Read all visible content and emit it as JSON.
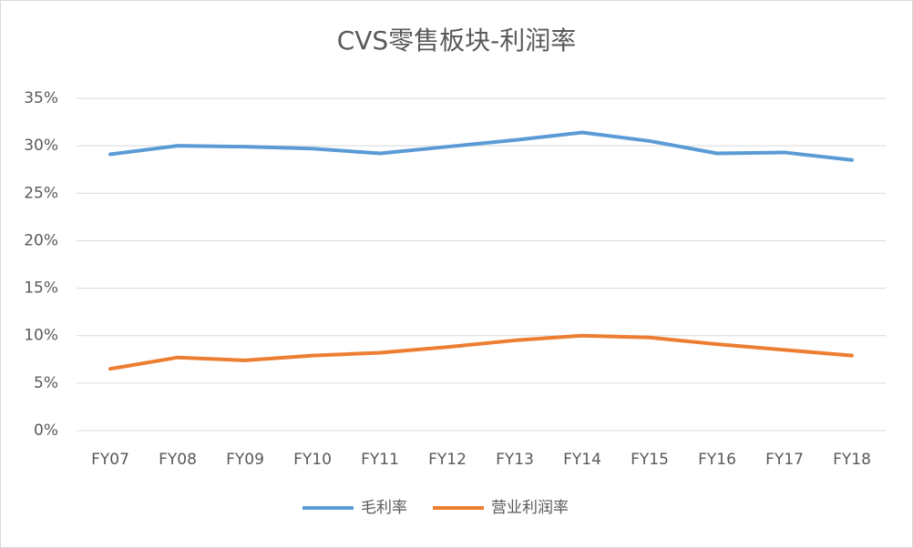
{
  "chart_data": {
    "type": "line",
    "title": "CVS零售板块-利润率",
    "categories": [
      "FY07",
      "FY08",
      "FY09",
      "FY10",
      "FY11",
      "FY12",
      "FY13",
      "FY14",
      "FY15",
      "FY16",
      "FY17",
      "FY18"
    ],
    "series": [
      {
        "name": "毛利率",
        "color": "#5b9bd5",
        "values": [
          29.1,
          30.0,
          29.9,
          29.7,
          29.2,
          29.9,
          30.6,
          31.4,
          30.5,
          29.2,
          29.3,
          28.5
        ]
      },
      {
        "name": "营业利润率",
        "color": "#ed7d31",
        "values": [
          6.5,
          7.7,
          7.4,
          7.9,
          8.2,
          8.8,
          9.5,
          10.0,
          9.8,
          9.1,
          8.5,
          7.9
        ]
      }
    ],
    "ylim": [
      0,
      35
    ],
    "yticks": [
      {
        "value": 0,
        "label": "0%"
      },
      {
        "value": 5,
        "label": "5%"
      },
      {
        "value": 10,
        "label": "10%"
      },
      {
        "value": 15,
        "label": "15%"
      },
      {
        "value": 20,
        "label": "20%"
      },
      {
        "value": 25,
        "label": "25%"
      },
      {
        "value": 30,
        "label": "30%"
      },
      {
        "value": 35,
        "label": "35%"
      }
    ],
    "grid": true,
    "legend": "bottom"
  }
}
